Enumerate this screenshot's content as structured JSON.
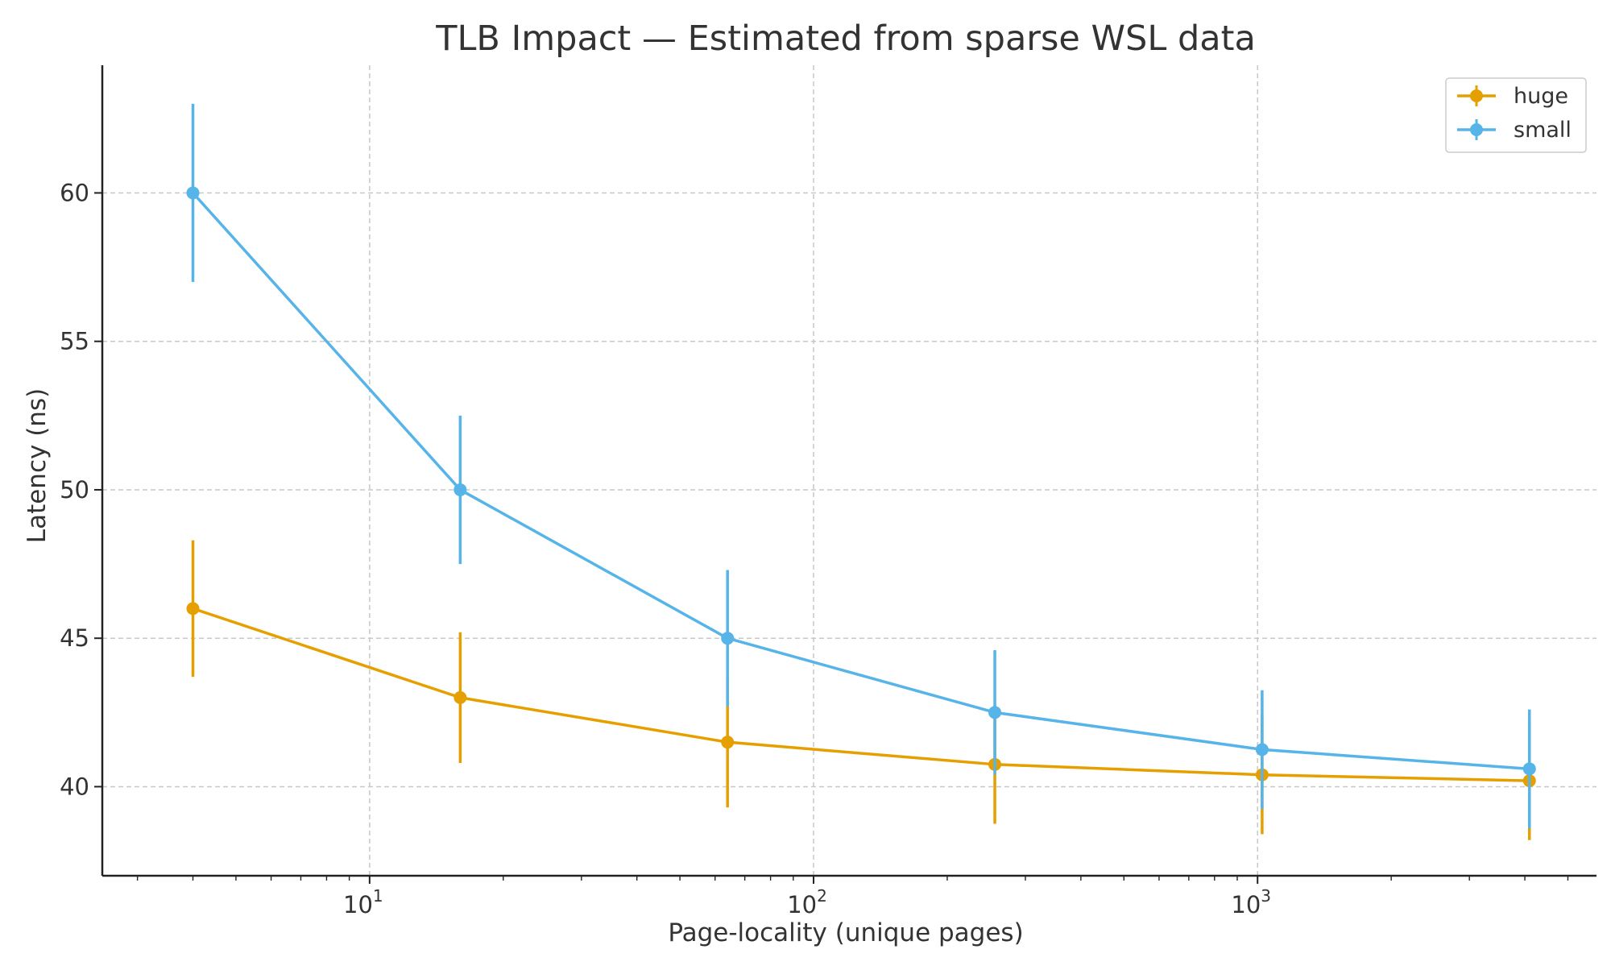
{
  "chart_data": {
    "type": "line",
    "title": "TLB Impact — Estimated from sparse WSL data",
    "xlabel": "Page-locality (unique pages)",
    "ylabel": "Latency (ns)",
    "xscale": "log",
    "xlim": [
      2.5,
      5800
    ],
    "ylim": [
      37,
      64.3
    ],
    "xticks": [
      10,
      100,
      1000
    ],
    "xtick_labels": [
      {
        "base": "10",
        "exp": "1"
      },
      {
        "base": "10",
        "exp": "2"
      },
      {
        "base": "10",
        "exp": "3"
      }
    ],
    "yticks": [
      40,
      45,
      50,
      55,
      60
    ],
    "grid": true,
    "legend_position": "top-right",
    "x": [
      4,
      16,
      64,
      256,
      1024,
      4096
    ],
    "series": [
      {
        "name": "huge",
        "color": "#E69F00",
        "values": [
          46.0,
          43.0,
          41.5,
          40.75,
          40.4,
          40.2
        ],
        "error": [
          2.3,
          2.2,
          2.2,
          2.0,
          2.0,
          2.0
        ]
      },
      {
        "name": "small",
        "color": "#56B4E9",
        "values": [
          60.0,
          50.0,
          45.0,
          42.5,
          41.25,
          40.6
        ],
        "error": [
          3.0,
          2.5,
          2.3,
          2.1,
          2.0,
          2.0
        ]
      }
    ]
  }
}
